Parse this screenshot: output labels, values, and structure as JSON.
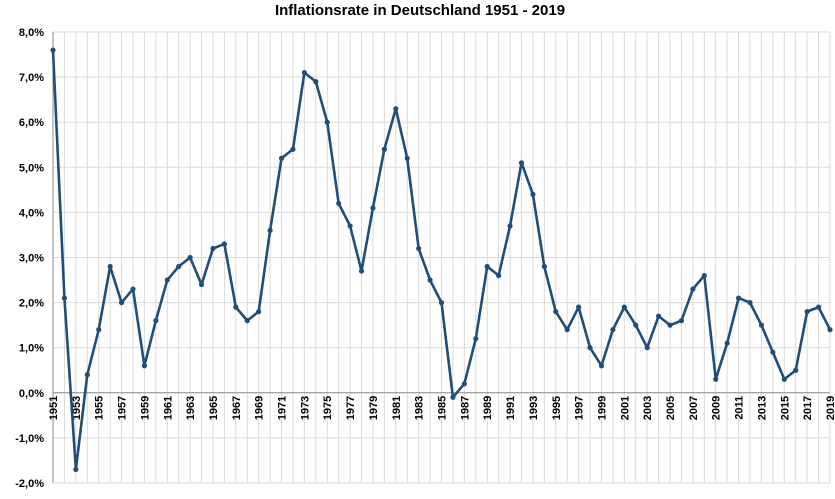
{
  "chart_data": {
    "type": "line",
    "title": "Inflationsrate in Deutschland 1951 - 2019",
    "xlabel": "",
    "ylabel": "",
    "ylim": [
      -2.0,
      8.0
    ],
    "y_step": 1.0,
    "y_tick_labels": [
      "-2,0%",
      "-1,0%",
      "0,0%",
      "1,0%",
      "2,0%",
      "3,0%",
      "4,0%",
      "5,0%",
      "6,0%",
      "7,0%",
      "8,0%"
    ],
    "grid": true,
    "x": [
      1951,
      1952,
      1953,
      1954,
      1955,
      1956,
      1957,
      1958,
      1959,
      1960,
      1961,
      1962,
      1963,
      1964,
      1965,
      1966,
      1967,
      1968,
      1969,
      1970,
      1971,
      1972,
      1973,
      1974,
      1975,
      1976,
      1977,
      1978,
      1979,
      1980,
      1981,
      1982,
      1983,
      1984,
      1985,
      1986,
      1987,
      1988,
      1989,
      1990,
      1991,
      1992,
      1993,
      1994,
      1995,
      1996,
      1997,
      1998,
      1999,
      2000,
      2001,
      2002,
      2003,
      2004,
      2005,
      2006,
      2007,
      2008,
      2009,
      2010,
      2011,
      2012,
      2013,
      2014,
      2015,
      2016,
      2017,
      2018,
      2019
    ],
    "x_tick_labels": [
      "1951",
      "1953",
      "1955",
      "1957",
      "1959",
      "1961",
      "1963",
      "1965",
      "1967",
      "1969",
      "1971",
      "1973",
      "1975",
      "1977",
      "1979",
      "1981",
      "1983",
      "1985",
      "1987",
      "1989",
      "1991",
      "1993",
      "1995",
      "1997",
      "1999",
      "2001",
      "2003",
      "2005",
      "2007",
      "2009",
      "2011",
      "2013",
      "2015",
      "2017",
      "2019"
    ],
    "series": [
      {
        "name": "Inflationsrate",
        "color": "#1f4e79",
        "values": [
          7.6,
          2.1,
          -1.7,
          0.4,
          1.4,
          2.8,
          2.0,
          2.3,
          0.6,
          1.6,
          2.5,
          2.8,
          3.0,
          2.4,
          3.2,
          3.3,
          1.9,
          1.6,
          1.8,
          3.6,
          5.2,
          5.4,
          7.1,
          6.9,
          6.0,
          4.2,
          3.7,
          2.7,
          4.1,
          5.4,
          6.3,
          5.2,
          3.2,
          2.5,
          2.0,
          -0.1,
          0.2,
          1.2,
          2.8,
          2.6,
          3.7,
          5.1,
          4.4,
          2.8,
          1.8,
          1.4,
          1.9,
          1.0,
          0.6,
          1.4,
          1.9,
          1.5,
          1.0,
          1.7,
          1.5,
          1.6,
          2.3,
          2.6,
          0.3,
          1.1,
          2.1,
          2.0,
          1.5,
          0.9,
          0.3,
          0.5,
          1.8,
          1.9,
          1.4
        ]
      }
    ]
  }
}
